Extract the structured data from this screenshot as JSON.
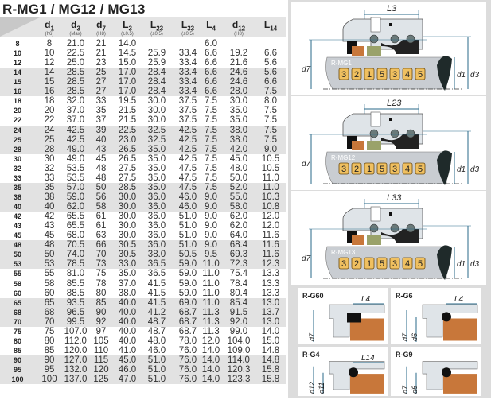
{
  "title": "R-MG1 / MG12 / MG13",
  "table": {
    "headers": [
      {
        "main": "d",
        "sub": "1",
        "note": "(h6)"
      },
      {
        "main": "d",
        "sub": "3",
        "note": "(Max)"
      },
      {
        "main": "d",
        "sub": "7",
        "note": "(H8)"
      },
      {
        "main": "L",
        "sub": "3",
        "note": "(±0.5)"
      },
      {
        "main": "L",
        "sub": "23",
        "note": "(±0.5)"
      },
      {
        "main": "L",
        "sub": "33",
        "note": "(±0.5)"
      },
      {
        "main": "L",
        "sub": "4",
        "note": ""
      },
      {
        "main": "d",
        "sub": "12",
        "note": "(H8)"
      },
      {
        "main": "L",
        "sub": "14",
        "note": ""
      }
    ],
    "rows": [
      [
        "8",
        "8",
        "21.0",
        "21",
        "14.0",
        "",
        "",
        "6.0",
        "",
        ""
      ],
      [
        "10",
        "10",
        "22.5",
        "21",
        "14.5",
        "25.9",
        "33.4",
        "6.6",
        "19.2",
        "6.6"
      ],
      [
        "12",
        "12",
        "25.0",
        "23",
        "15.0",
        "25.9",
        "33.4",
        "6.6",
        "21.6",
        "5.6"
      ],
      [
        "14",
        "14",
        "28.5",
        "25",
        "17.0",
        "28.4",
        "33.4",
        "6.6",
        "24.6",
        "5.6"
      ],
      [
        "15",
        "15",
        "28.5",
        "27",
        "17.0",
        "28.4",
        "33.4",
        "6.6",
        "24.6",
        "6.6"
      ],
      [
        "16",
        "16",
        "28.5",
        "27",
        "17.0",
        "28.4",
        "33.4",
        "6.6",
        "28.0",
        "7.5"
      ],
      [
        "18",
        "18",
        "32.0",
        "33",
        "19.5",
        "30.0",
        "37.5",
        "7.5",
        "30.0",
        "8.0"
      ],
      [
        "20",
        "20",
        "37.0",
        "35",
        "21.5",
        "30.0",
        "37.5",
        "7.5",
        "35.0",
        "7.5"
      ],
      [
        "22",
        "22",
        "37.0",
        "37",
        "21.5",
        "30.0",
        "37.5",
        "7.5",
        "35.0",
        "7.5"
      ],
      [
        "24",
        "24",
        "42.5",
        "39",
        "22.5",
        "32.5",
        "42.5",
        "7.5",
        "38.0",
        "7.5"
      ],
      [
        "25",
        "25",
        "42.5",
        "40",
        "23.0",
        "32.5",
        "42.5",
        "7.5",
        "38.0",
        "7.5"
      ],
      [
        "28",
        "28",
        "49.0",
        "43",
        "26.5",
        "35.0",
        "42.5",
        "7.5",
        "42.0",
        "9.0"
      ],
      [
        "30",
        "30",
        "49.0",
        "45",
        "26.5",
        "35.0",
        "42.5",
        "7.5",
        "45.0",
        "10.5"
      ],
      [
        "32",
        "32",
        "53.5",
        "48",
        "27.5",
        "35.0",
        "47.5",
        "7.5",
        "48.0",
        "10.5"
      ],
      [
        "33",
        "33",
        "53.5",
        "48",
        "27.5",
        "35.0",
        "47.5",
        "7.5",
        "50.0",
        "11.0"
      ],
      [
        "35",
        "35",
        "57.0",
        "50",
        "28.5",
        "35.0",
        "47.5",
        "7.5",
        "52.0",
        "11.0"
      ],
      [
        "38",
        "38",
        "59.0",
        "56",
        "30.0",
        "36.0",
        "46.0",
        "9.0",
        "55.0",
        "10.3"
      ],
      [
        "40",
        "40",
        "62.0",
        "58",
        "30.0",
        "36.0",
        "46.0",
        "9.0",
        "58.0",
        "10.8"
      ],
      [
        "42",
        "42",
        "65.5",
        "61",
        "30.0",
        "36.0",
        "51.0",
        "9.0",
        "62.0",
        "12.0"
      ],
      [
        "43",
        "43",
        "65.5",
        "61",
        "30.0",
        "36.0",
        "51.0",
        "9.0",
        "62.0",
        "12.0"
      ],
      [
        "45",
        "45",
        "68.0",
        "63",
        "30.0",
        "36.0",
        "51.0",
        "9.0",
        "64.0",
        "11.6"
      ],
      [
        "48",
        "48",
        "70.5",
        "66",
        "30.5",
        "36.0",
        "51.0",
        "9.0",
        "68.4",
        "11.6"
      ],
      [
        "50",
        "50",
        "74.0",
        "70",
        "30.5",
        "38.0",
        "50.5",
        "9.5",
        "69.3",
        "11.6"
      ],
      [
        "53",
        "53",
        "78.5",
        "73",
        "33.0",
        "36.5",
        "59.0",
        "11.0",
        "72.3",
        "12.3"
      ],
      [
        "55",
        "55",
        "81.0",
        "75",
        "35.0",
        "36.5",
        "59.0",
        "11.0",
        "75.4",
        "13.3"
      ],
      [
        "58",
        "58",
        "85.5",
        "78",
        "37.0",
        "41.5",
        "59.0",
        "11.0",
        "78.4",
        "13.3"
      ],
      [
        "60",
        "60",
        "88.5",
        "80",
        "38.0",
        "41.5",
        "59.0",
        "11.0",
        "80.4",
        "13.3"
      ],
      [
        "65",
        "65",
        "93.5",
        "85",
        "40.0",
        "41.5",
        "69.0",
        "11.0",
        "85.4",
        "13.0"
      ],
      [
        "68",
        "68",
        "96.5",
        "90",
        "40.0",
        "41.2",
        "68.7",
        "11.3",
        "91.5",
        "13.7"
      ],
      [
        "70",
        "70",
        "99.5",
        "92",
        "40.0",
        "48.7",
        "68.7",
        "11.3",
        "92.0",
        "13.0"
      ],
      [
        "75",
        "75",
        "107.0",
        "97",
        "40.0",
        "48.7",
        "68.7",
        "11.3",
        "99.0",
        "14.0"
      ],
      [
        "80",
        "80",
        "112.0",
        "105",
        "40.0",
        "48.0",
        "78.0",
        "12.0",
        "104.0",
        "15.0"
      ],
      [
        "85",
        "85",
        "120.0",
        "110",
        "41.0",
        "46.0",
        "76.0",
        "14.0",
        "109.0",
        "14.8"
      ],
      [
        "90",
        "90",
        "127.0",
        "115",
        "45.0",
        "51.0",
        "76.0",
        "14.0",
        "114.0",
        "14.8"
      ],
      [
        "95",
        "95",
        "132.0",
        "120",
        "46.0",
        "51.0",
        "76.0",
        "14.0",
        "120.3",
        "15.8"
      ],
      [
        "100",
        "100",
        "137.0",
        "125",
        "47.0",
        "51.0",
        "76.0",
        "14.0",
        "123.3",
        "15.8"
      ]
    ]
  },
  "diagrams": [
    {
      "model": "R-MG1",
      "length_label": "L3",
      "d_left": "d7",
      "d_mid": "d1",
      "d_right": "d3",
      "parts": [
        "3",
        "2",
        "1",
        "5",
        "3",
        "4",
        "5"
      ]
    },
    {
      "model": "R-MG12",
      "length_label": "L23",
      "d_left": "d7",
      "d_mid": "d1",
      "d_right": "d3",
      "parts": [
        "3",
        "2",
        "1",
        "5",
        "3",
        "4",
        "5"
      ]
    },
    {
      "model": "R-MG13",
      "length_label": "L33",
      "d_left": "d7",
      "d_mid": "d1",
      "d_right": "d3",
      "parts": [
        "3",
        "2",
        "1",
        "5",
        "3",
        "4",
        "5"
      ]
    }
  ],
  "seats": [
    {
      "model": "R-G60",
      "length_label": "L4",
      "dims": [
        "d7"
      ]
    },
    {
      "model": "R-G6",
      "length_label": "L4",
      "dims": [
        "d7",
        "d6"
      ]
    },
    {
      "model": "R-G4",
      "length_label": "L14",
      "dims": [
        "d12",
        "d11"
      ]
    },
    {
      "model": "R-G9",
      "length_label": "",
      "dims": [
        "d7",
        "d6"
      ]
    }
  ],
  "colors": {
    "rubber": "#c8773a",
    "part_box": "#f0c060",
    "housing": "#dfe4e8",
    "shaft": "#c9cdd2"
  }
}
